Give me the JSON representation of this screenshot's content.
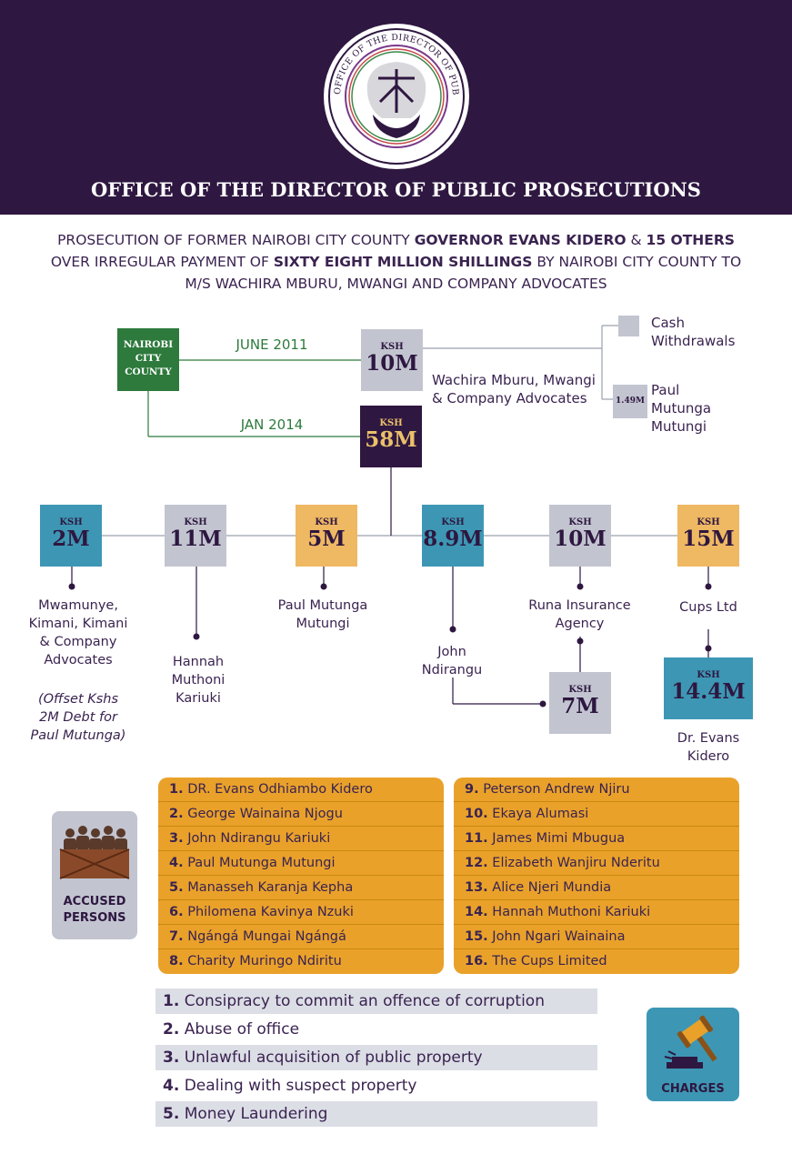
{
  "header": {
    "seal_text": "OFFICE OF THE DIRECTOR OF PUBLIC PROSECUTIONS",
    "title": "OFFICE OF THE DIRECTOR OF PUBLIC PROSECUTIONS"
  },
  "intro": {
    "p1": "PROSECUTION OF FORMER NAIROBI CITY COUNTY ",
    "p2": "GOVERNOR EVANS KIDERO",
    "p3": " & ",
    "p4": "15 OTHERS",
    "p5": " OVER IRREGULAR PAYMENT OF ",
    "p6": "SIXTY EIGHT MILLION SHILLINGS",
    "p7": " BY NAIROBI CITY COUNTY TO  M/S WACHIRA MBURU, MWANGI  AND COMPANY ADVOCATES"
  },
  "flow": {
    "source": "NAIROBI CITY COUNTY",
    "date1": "JUNE 2011",
    "date2": "JAN 2014",
    "ksh": "KSH",
    "amt_10m_top": "10M",
    "amt_58m": "58M",
    "recipient": "Wachira Mburu, Mwangi & Company Advocates",
    "cash_label": "Cash Withdrawals",
    "small_amt": "1.49M",
    "paul_top": "Paul Mutunga Mutungi",
    "boxes": [
      {
        "amount": "2M",
        "color": "blue"
      },
      {
        "amount": "11M",
        "color": "grey"
      },
      {
        "amount": "5M",
        "color": "orange"
      },
      {
        "amount": "8.9M",
        "color": "blue"
      },
      {
        "amount": "10M",
        "color": "grey"
      },
      {
        "amount": "15M",
        "color": "orange"
      }
    ],
    "r1": "Mwamunye, Kimani, Kimani & Company Advocates",
    "r1_note": "(Offset Kshs 2M Debt for Paul Mutunga)",
    "r2": "Hannah Muthoni Kariuki",
    "r3": "Paul Mutunga Mutungi",
    "r4": "John Ndirangu",
    "r5": "Runa Insurance Agency",
    "r6": "Cups Ltd",
    "amt_7m": "7M",
    "amt_144m": "14.4M",
    "kidero": "Dr. Evans Kidero"
  },
  "accused": {
    "badge": "ACCUSED PERSONS",
    "left": [
      {
        "n": "1.",
        "name": "DR. Evans Odhiambo Kidero"
      },
      {
        "n": "2.",
        "name": "George Wainaina Njogu"
      },
      {
        "n": "3.",
        "name": "John Ndirangu Kariuki"
      },
      {
        "n": "4.",
        "name": "Paul Mutunga Mutungi"
      },
      {
        "n": "5.",
        "name": "Manasseh Karanja Kepha"
      },
      {
        "n": "6.",
        "name": "Philomena Kavinya Nzuki"
      },
      {
        "n": "7.",
        "name": "Ngángá Mungai Ngángá"
      },
      {
        "n": "8.",
        "name": "Charity Muringo Ndiritu"
      }
    ],
    "right": [
      {
        "n": "9.",
        "name": "Peterson Andrew Njiru"
      },
      {
        "n": "10.",
        "name": "Ekaya Alumasi"
      },
      {
        "n": "11.",
        "name": "James Mimi Mbugua"
      },
      {
        "n": "12.",
        "name": "Elizabeth Wanjiru Nderitu"
      },
      {
        "n": "13.",
        "name": "Alice Njeri Mundia"
      },
      {
        "n": "14.",
        "name": "Hannah Muthoni Kariuki"
      },
      {
        "n": "15.",
        "name": "John Ngari Wainaina"
      },
      {
        "n": "16.",
        "name": "The Cups Limited"
      }
    ]
  },
  "charges": {
    "badge": "CHARGES",
    "items": [
      {
        "n": "1.",
        "text": "Consipracy to commit an offence of corruption"
      },
      {
        "n": "2.",
        "text": "Abuse of office"
      },
      {
        "n": "3.",
        "text": "Unlawful acquisition of public property"
      },
      {
        "n": "4.",
        "text": "Dealing with suspect property"
      },
      {
        "n": "5.",
        "text": "Money Laundering"
      }
    ]
  },
  "colors": {
    "purple": "#2e1740",
    "blue": "#3d97b4",
    "grey": "#c2c5d0",
    "orange": "#efb863",
    "green": "#2d7a3c",
    "amber": "#e9a12a"
  },
  "icons": [
    "seal-emblem",
    "accused-persons-icon",
    "gavel-icon"
  ]
}
